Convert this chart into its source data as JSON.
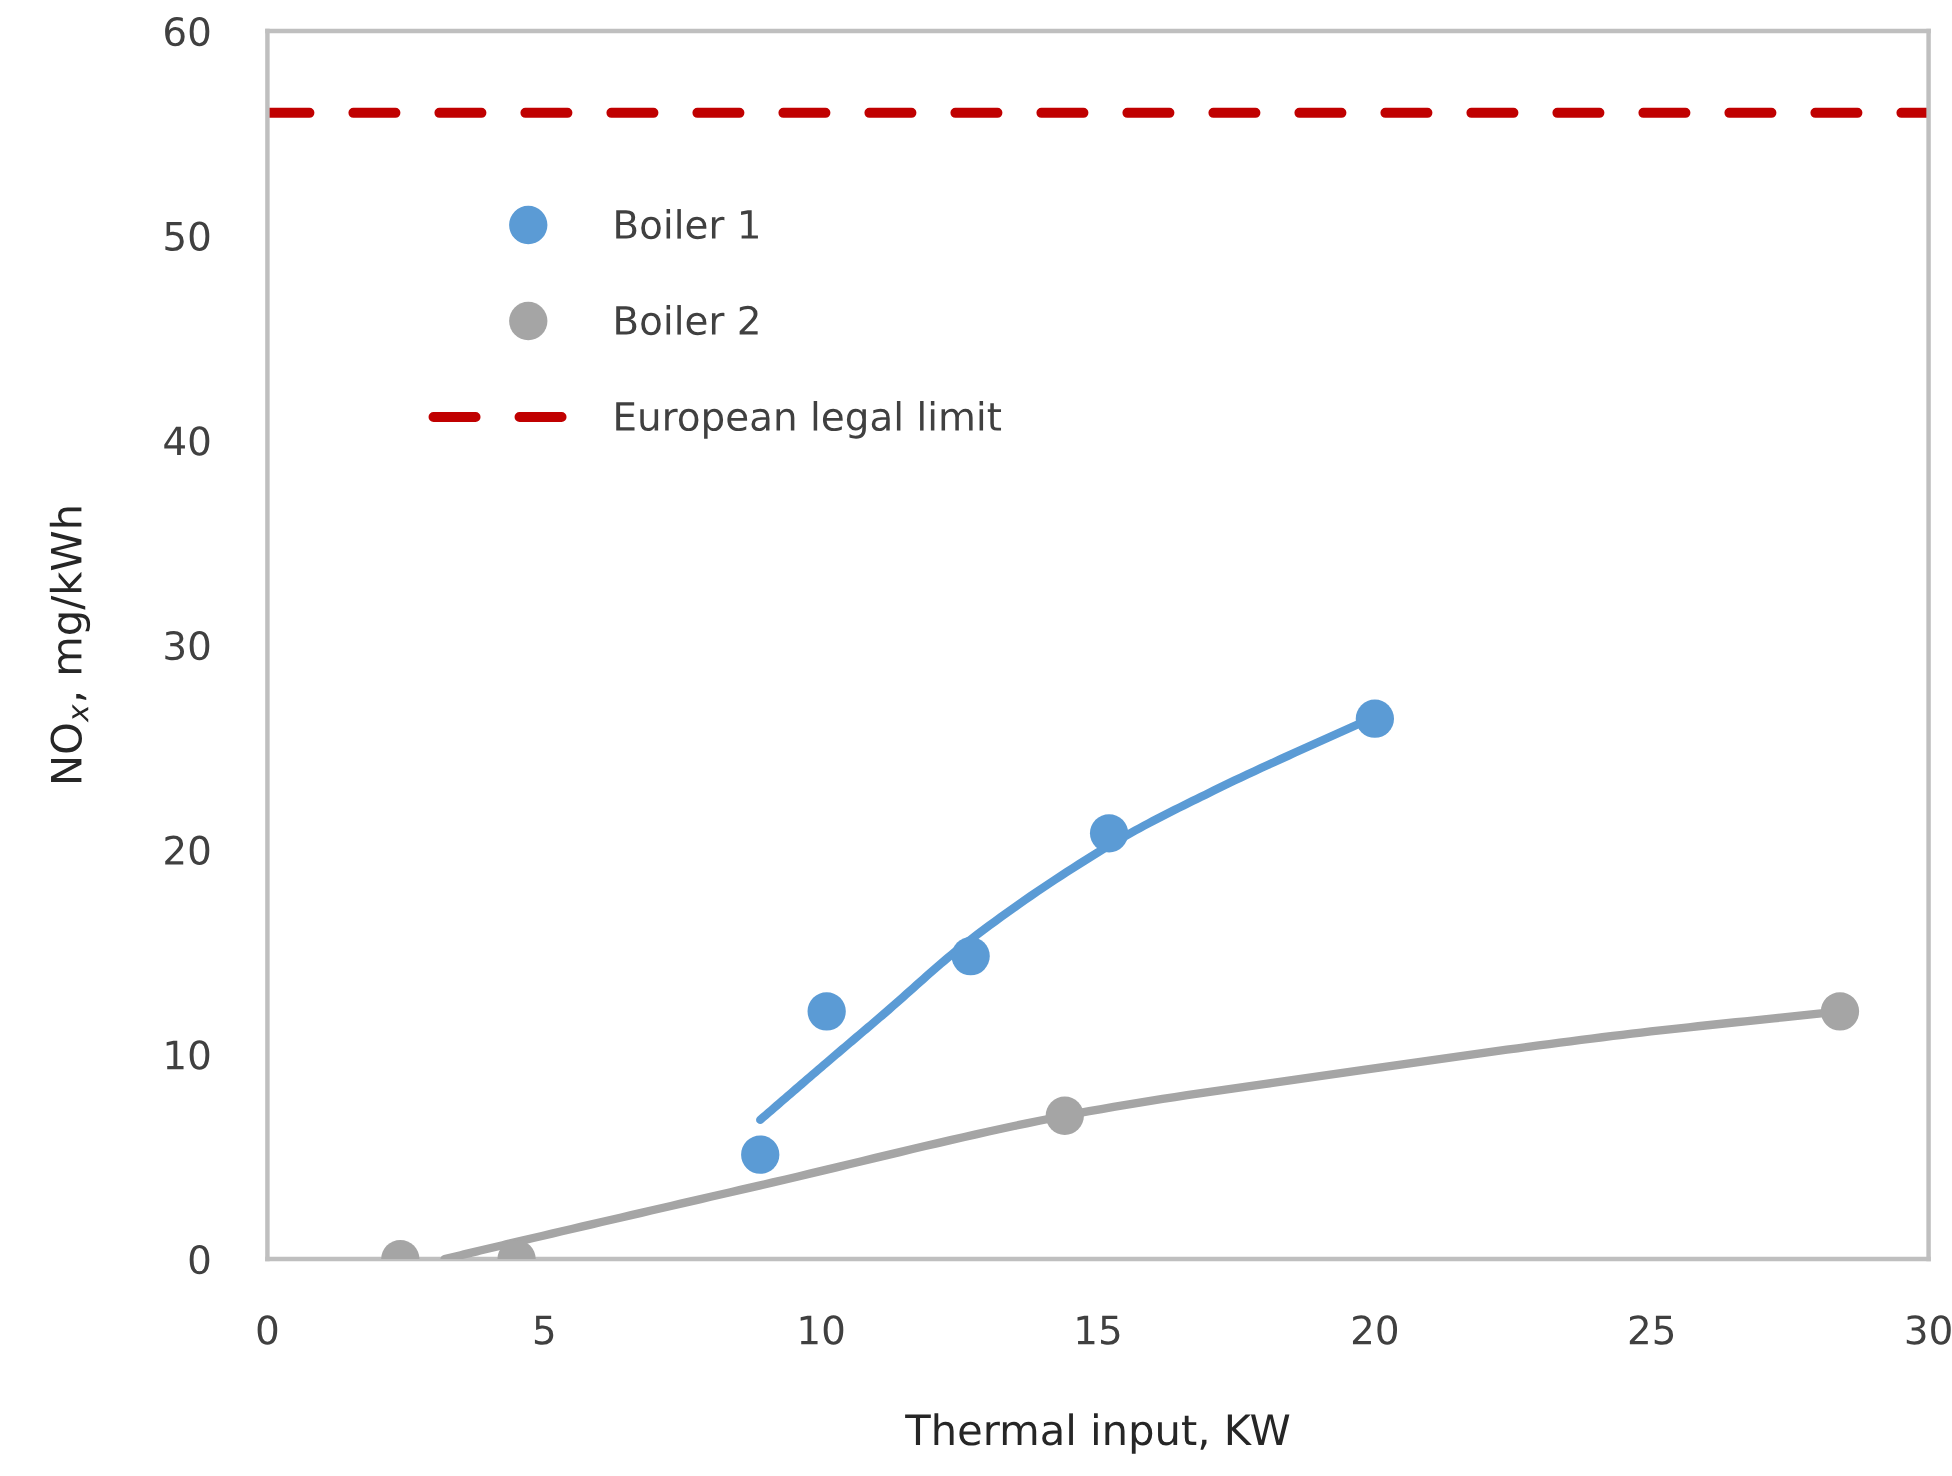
{
  "chart_data": {
    "type": "scatter",
    "xlabel": "Thermal input, KW",
    "ylabel": "NO$_{x}$, mg/kWh",
    "xlim": [
      0,
      30
    ],
    "ylim": [
      0,
      60
    ],
    "xticks": [
      0,
      5,
      10,
      15,
      20,
      25,
      30
    ],
    "yticks": [
      0,
      10,
      20,
      30,
      40,
      50,
      60
    ],
    "legend": "top left",
    "series": [
      {
        "name": "Boiler 1",
        "color": "#5b9bd5",
        "marker": "circle",
        "x": [
          8.9,
          10.1,
          12.7,
          15.2,
          20.0
        ],
        "values": [
          5.1,
          12.1,
          14.8,
          20.8,
          26.4
        ]
      },
      {
        "name": "Boiler 2",
        "color": "#a5a5a5",
        "marker": "circle",
        "x": [
          2.4,
          4.5,
          14.4,
          28.4
        ],
        "values": [
          0,
          0,
          7.0,
          12.1
        ]
      },
      {
        "type": "line",
        "color": "#5b9bd5",
        "x": [
          8.9,
          10.1,
          11.1,
          12.6,
          15.2,
          17.1,
          20.0
        ],
        "values": [
          6.8,
          9.6,
          11.9,
          15.4,
          20.2,
          22.9,
          26.5
        ]
      },
      {
        "type": "line",
        "color": "#a5a5a5",
        "x": [
          3.2,
          4.6,
          8.9,
          14.4,
          19.7,
          24.3,
          28.4
        ],
        "values": [
          0,
          0.9,
          3.6,
          7.0,
          9.2,
          10.9,
          12.1
        ]
      }
    ],
    "ref_lines": [
      {
        "axis": "y",
        "value": 56,
        "label": "European legal limit",
        "color": "#c00000",
        "line_style": "dashed"
      }
    ]
  }
}
